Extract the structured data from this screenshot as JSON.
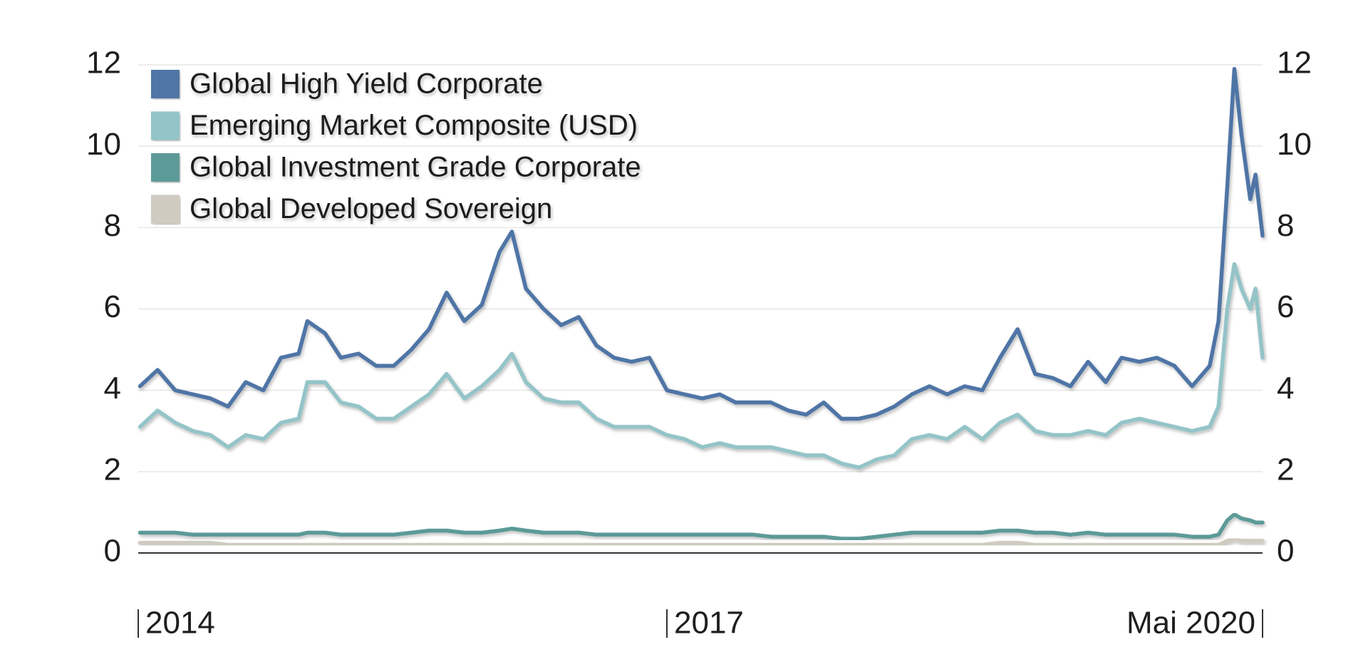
{
  "chart_data": {
    "type": "line",
    "x": [
      2014.01,
      2014.11,
      2014.21,
      2014.31,
      2014.41,
      2014.51,
      2014.61,
      2014.71,
      2014.81,
      2014.91,
      2014.96,
      2015.06,
      2015.15,
      2015.25,
      2015.35,
      2015.45,
      2015.55,
      2015.65,
      2015.75,
      2015.85,
      2015.95,
      2016.05,
      2016.12,
      2016.2,
      2016.3,
      2016.4,
      2016.5,
      2016.6,
      2016.7,
      2016.8,
      2016.9,
      2017.0,
      2017.1,
      2017.2,
      2017.3,
      2017.39,
      2017.49,
      2017.59,
      2017.69,
      2017.79,
      2017.89,
      2017.99,
      2018.09,
      2018.19,
      2018.29,
      2018.39,
      2018.49,
      2018.59,
      2018.69,
      2018.79,
      2018.89,
      2018.99,
      2019.09,
      2019.19,
      2019.29,
      2019.39,
      2019.49,
      2019.58,
      2019.68,
      2019.78,
      2019.88,
      2019.98,
      2020.08,
      2020.13,
      2020.18,
      2020.22,
      2020.26,
      2020.31,
      2020.34,
      2020.38
    ],
    "series": [
      {
        "name": "Global High Yield Corporate",
        "color": "#4f74a6",
        "values": [
          4.1,
          4.5,
          4.0,
          3.9,
          3.8,
          3.6,
          4.2,
          4.0,
          4.8,
          4.9,
          5.7,
          5.4,
          4.8,
          4.9,
          4.6,
          4.6,
          5.0,
          5.5,
          6.4,
          5.7,
          6.1,
          7.4,
          7.9,
          6.5,
          6.0,
          5.6,
          5.8,
          5.1,
          4.8,
          4.7,
          4.8,
          4.0,
          3.9,
          3.8,
          3.9,
          3.7,
          3.7,
          3.7,
          3.5,
          3.4,
          3.7,
          3.3,
          3.3,
          3.4,
          3.6,
          3.9,
          4.1,
          3.9,
          4.1,
          4.0,
          4.8,
          5.5,
          4.4,
          4.3,
          4.1,
          4.7,
          4.2,
          4.8,
          4.7,
          4.8,
          4.6,
          4.1,
          4.6,
          5.7,
          9.0,
          11.9,
          10.3,
          8.7,
          9.3,
          7.8
        ]
      },
      {
        "name": "Emerging Market Composite (USD)",
        "color": "#94c4c8",
        "values": [
          3.1,
          3.5,
          3.2,
          3.0,
          2.9,
          2.6,
          2.9,
          2.8,
          3.2,
          3.3,
          4.2,
          4.2,
          3.7,
          3.6,
          3.3,
          3.3,
          3.6,
          3.9,
          4.4,
          3.8,
          4.1,
          4.5,
          4.9,
          4.2,
          3.8,
          3.7,
          3.7,
          3.3,
          3.1,
          3.1,
          3.1,
          2.9,
          2.8,
          2.6,
          2.7,
          2.6,
          2.6,
          2.6,
          2.5,
          2.4,
          2.4,
          2.2,
          2.1,
          2.3,
          2.4,
          2.8,
          2.9,
          2.8,
          3.1,
          2.8,
          3.2,
          3.4,
          3.0,
          2.9,
          2.9,
          3.0,
          2.9,
          3.2,
          3.3,
          3.2,
          3.1,
          3.0,
          3.1,
          3.6,
          6.0,
          7.1,
          6.5,
          6.0,
          6.5,
          4.8
        ]
      },
      {
        "name": "Global Investment Grade Corporate",
        "color": "#5b9a98",
        "values": [
          0.5,
          0.5,
          0.5,
          0.45,
          0.45,
          0.45,
          0.45,
          0.45,
          0.45,
          0.45,
          0.5,
          0.5,
          0.45,
          0.45,
          0.45,
          0.45,
          0.5,
          0.55,
          0.55,
          0.5,
          0.5,
          0.55,
          0.6,
          0.55,
          0.5,
          0.5,
          0.5,
          0.45,
          0.45,
          0.45,
          0.45,
          0.45,
          0.45,
          0.45,
          0.45,
          0.45,
          0.45,
          0.4,
          0.4,
          0.4,
          0.4,
          0.35,
          0.35,
          0.4,
          0.45,
          0.5,
          0.5,
          0.5,
          0.5,
          0.5,
          0.55,
          0.55,
          0.5,
          0.5,
          0.45,
          0.5,
          0.45,
          0.45,
          0.45,
          0.45,
          0.45,
          0.4,
          0.4,
          0.45,
          0.8,
          0.95,
          0.85,
          0.8,
          0.75,
          0.75
        ]
      },
      {
        "name": "Global Developed Sovereign",
        "color": "#cfcbc0",
        "values": [
          0.25,
          0.25,
          0.25,
          0.25,
          0.25,
          0.2,
          0.2,
          0.2,
          0.2,
          0.2,
          0.2,
          0.2,
          0.2,
          0.2,
          0.2,
          0.2,
          0.2,
          0.2,
          0.2,
          0.2,
          0.2,
          0.2,
          0.2,
          0.2,
          0.2,
          0.2,
          0.2,
          0.2,
          0.2,
          0.2,
          0.2,
          0.2,
          0.2,
          0.2,
          0.2,
          0.2,
          0.2,
          0.2,
          0.2,
          0.2,
          0.2,
          0.2,
          0.2,
          0.2,
          0.2,
          0.2,
          0.2,
          0.2,
          0.2,
          0.2,
          0.25,
          0.25,
          0.2,
          0.2,
          0.2,
          0.2,
          0.2,
          0.2,
          0.2,
          0.2,
          0.2,
          0.2,
          0.2,
          0.2,
          0.3,
          0.35,
          0.3,
          0.3,
          0.3,
          0.3
        ]
      }
    ],
    "xlim": [
      2014,
      2020.38
    ],
    "xticks": [
      {
        "value": 2014,
        "label": "2014"
      },
      {
        "value": 2017,
        "label": "2017"
      },
      {
        "value": 2020.38,
        "label": "Mai 2020"
      }
    ],
    "ylim": [
      0,
      12
    ],
    "yticks": [
      0,
      2,
      4,
      6,
      8,
      10,
      12
    ],
    "grid": true,
    "legend": "top-left"
  }
}
